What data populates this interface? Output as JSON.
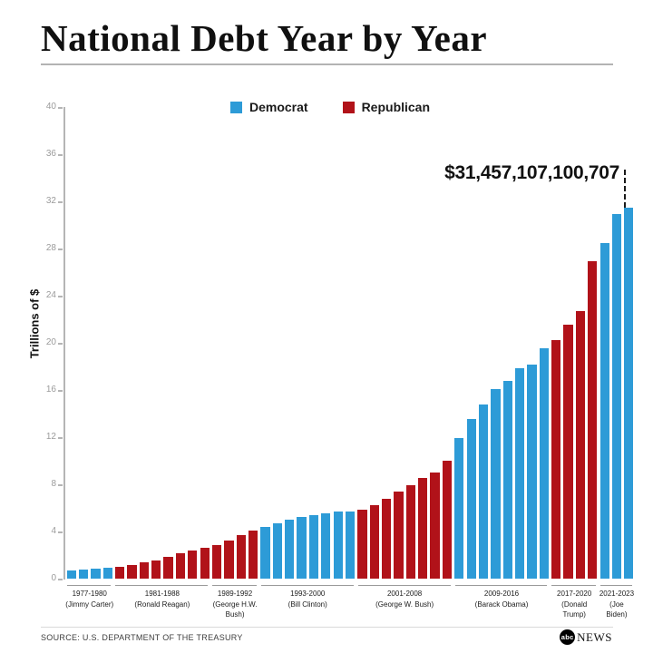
{
  "header": {
    "title": "National Debt Year by Year"
  },
  "legend": [
    {
      "label": "Democrat",
      "color": "#2D9BD7"
    },
    {
      "label": "Republican",
      "color": "#B11219"
    }
  ],
  "y_axis": {
    "title": "Trillions of $"
  },
  "chart_data": {
    "type": "bar",
    "title": "National Debt Year by Year",
    "ylabel": "Trillions of $",
    "ylim": [
      0,
      40
    ],
    "y_ticks": [
      0,
      4,
      8,
      12,
      16,
      20,
      24,
      28,
      32,
      36,
      40
    ],
    "grid": false,
    "legend_position": "top",
    "annotation": "$31,457,107,100,707",
    "series_colors": {
      "Democrat": "#2D9BD7",
      "Republican": "#B11219"
    },
    "start_year": 1977,
    "groups": [
      {
        "years": "1977-1980",
        "president": "(Jimmy Carter)",
        "party": "Democrat",
        "values": [
          0.7,
          0.77,
          0.83,
          0.91
        ]
      },
      {
        "years": "1981-1988",
        "president": "(Ronald Reagan)",
        "party": "Republican",
        "values": [
          1.0,
          1.14,
          1.38,
          1.57,
          1.82,
          2.13,
          2.35,
          2.6
        ]
      },
      {
        "years": "1989-1992",
        "president": "(George H.W.\nBush)",
        "party": "Republican",
        "values": [
          2.86,
          3.23,
          3.67,
          4.06
        ]
      },
      {
        "years": "1993-2000",
        "president": "(Bill Clinton)",
        "party": "Democrat",
        "values": [
          4.41,
          4.69,
          4.97,
          5.22,
          5.41,
          5.53,
          5.66,
          5.67
        ]
      },
      {
        "years": "2001-2008",
        "president": "(George W. Bush)",
        "party": "Republican",
        "values": [
          5.81,
          6.23,
          6.78,
          7.38,
          7.93,
          8.51,
          9.01,
          10.02
        ]
      },
      {
        "years": "2009-2016",
        "president": "(Barack Obama)",
        "party": "Democrat",
        "values": [
          11.91,
          13.56,
          14.79,
          16.07,
          16.74,
          17.82,
          18.15,
          19.57
        ]
      },
      {
        "years": "2017-2020",
        "president": "(Donald\nTrump)",
        "party": "Republican",
        "values": [
          20.24,
          21.52,
          22.72,
          26.95
        ]
      },
      {
        "years": "2021-2023",
        "president": "(Joe\nBiden)",
        "party": "Democrat",
        "values": [
          28.43,
          30.93,
          31.46
        ]
      }
    ]
  },
  "footer": {
    "source": "SOURCE: U.S. DEPARTMENT OF THE TREASURY",
    "logo_abc": "abc",
    "logo_news": "NEWS"
  }
}
